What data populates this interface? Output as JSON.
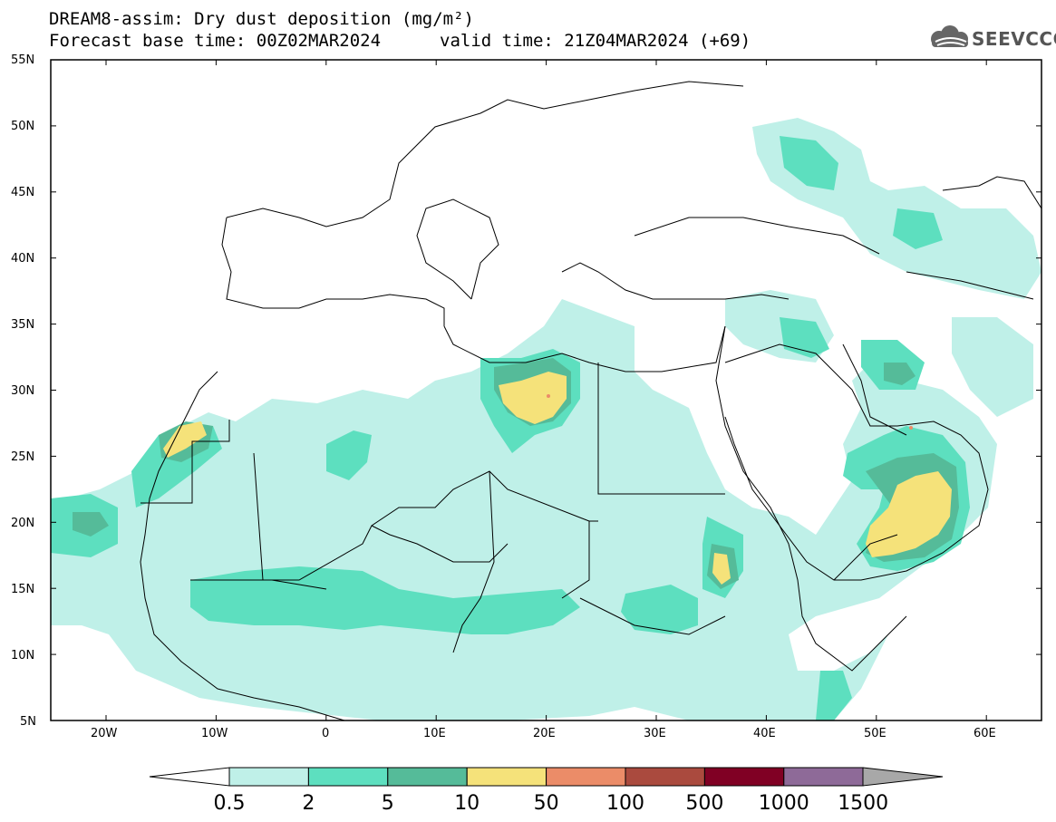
{
  "title": {
    "line1": "DREAM8-assim: Dry dust deposition (mg/m²)",
    "line2": "Forecast base time: 00Z02MAR2024",
    "line3": "valid time: 21Z04MAR2024 (+69)"
  },
  "logo": {
    "text": "SEEVCCC",
    "icon": "cloud-logo-icon"
  },
  "map": {
    "lon_range": [
      -25,
      65
    ],
    "lat_range": [
      5,
      55
    ],
    "lat_labels": [
      "55N",
      "50N",
      "45N",
      "40N",
      "35N",
      "30N",
      "25N",
      "20N",
      "15N",
      "10N",
      "5N"
    ],
    "lon_labels": [
      "20W",
      "10W",
      "0",
      "10E",
      "20E",
      "30E",
      "40E",
      "50E",
      "60E"
    ]
  },
  "colorbar": {
    "labels": [
      "0.5",
      "2",
      "5",
      "10",
      "50",
      "100",
      "500",
      "1000",
      "1500"
    ],
    "colors": [
      "#ffffff",
      "#bff0e8",
      "#5ddfbf",
      "#55bb99",
      "#f5e27a",
      "#eb8c68",
      "#aa4a3e",
      "#800024",
      "#8e6a98",
      "#a8a8a8"
    ]
  }
}
